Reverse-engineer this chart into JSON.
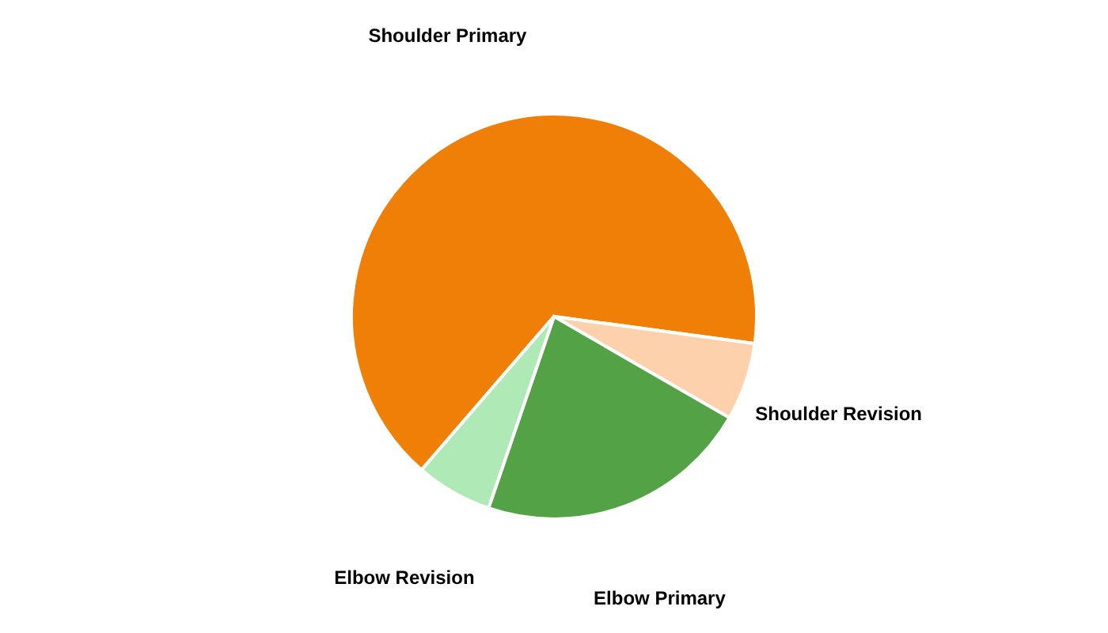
{
  "chart_data": {
    "type": "pie",
    "categories": [
      "Shoulder Primary",
      "Shoulder Revision",
      "Elbow Primary",
      "Elbow Revision"
    ],
    "values": [
      65.8,
      6.2,
      21.9,
      6.1
    ],
    "colors": [
      "#ef7f07",
      "#fdd1ab",
      "#53a246",
      "#afe9b6"
    ],
    "legend": false
  }
}
